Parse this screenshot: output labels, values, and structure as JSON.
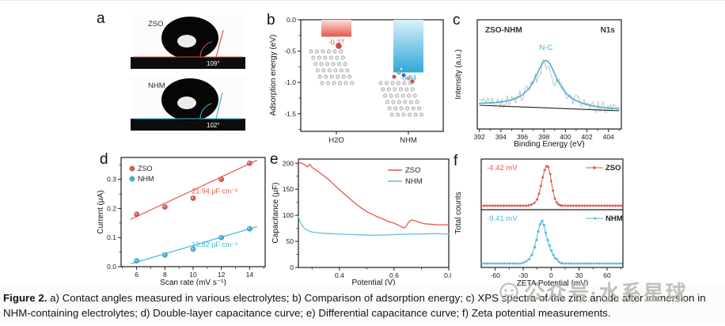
{
  "panels": {
    "a": {
      "letter": "a",
      "images": [
        {
          "sample": "ZSO",
          "angle": "109°",
          "line_color": "#e0524c"
        },
        {
          "sample": "NHM",
          "angle": "102°",
          "line_color": "#3fb4dc"
        }
      ]
    },
    "b": {
      "letter": "b"
    },
    "c": {
      "letter": "c"
    },
    "d": {
      "letter": "d"
    },
    "e": {
      "letter": "e"
    },
    "f": {
      "letter": "f"
    }
  },
  "chart_data": [
    {
      "panel": "b",
      "type": "bar",
      "categories": [
        "H2O",
        "NHM"
      ],
      "values": [
        -0.27,
        -0.84
      ],
      "bar_labels": [
        "-0.27",
        "-0.84"
      ],
      "series_colors": [
        "#e4574b",
        "#2fa8d8"
      ],
      "ylabel": "Adsorption energy (eV)",
      "ylim": [
        -1.78,
        0.0
      ],
      "yticks": [
        0.0,
        -0.5,
        -1.0,
        -1.5
      ]
    },
    {
      "panel": "c",
      "type": "line",
      "title_left": "ZSO-NHM",
      "title_right": "N1s",
      "peak_label": "N-C",
      "xlabel": "Binding Energy (eV)",
      "ylabel": "Intensity (a.u.)",
      "xlim": [
        391.8,
        405.2
      ],
      "xticks": [
        392,
        394,
        396,
        398,
        400,
        402,
        404
      ],
      "peak": {
        "center": 398.2,
        "half_width": 1.3,
        "amplitude": 60
      },
      "noise_seed": 9,
      "noise_amplitude": 16,
      "colors": {
        "fit": "#41aed3",
        "raw": "#bdbdbd",
        "baseline": "#222222"
      }
    },
    {
      "panel": "d",
      "type": "scatter",
      "xlabel": "Scan rate (mV s⁻¹)",
      "ylabel": "Current (μA)",
      "xlim": [
        4.9,
        15.1
      ],
      "ylim": [
        0,
        0.375
      ],
      "xticks": [
        6,
        8,
        10,
        12,
        14
      ],
      "yticks": [
        0.0,
        0.1,
        0.2,
        0.3
      ],
      "series": [
        {
          "name": "ZSO",
          "color": "#e4574b",
          "points": [
            [
              6,
              0.18
            ],
            [
              8,
              0.205
            ],
            [
              10,
              0.235
            ],
            [
              12,
              0.3
            ],
            [
              14,
              0.355
            ]
          ],
          "fit": [
            [
              5.6,
              0.163
            ],
            [
              14.5,
              0.365
            ]
          ],
          "annotation": "21.94 μF cm⁻²",
          "annotation_xy": [
            9.9,
            0.252
          ]
        },
        {
          "name": "NHM",
          "color": "#3fb4dc",
          "points": [
            [
              6,
              0.02
            ],
            [
              8,
              0.04
            ],
            [
              10,
              0.06
            ],
            [
              12,
              0.1
            ],
            [
              14,
              0.13
            ]
          ],
          "fit": [
            [
              5.6,
              0.01
            ],
            [
              14.5,
              0.137
            ]
          ],
          "annotation": "13.82 μF cm⁻²",
          "annotation_xy": [
            9.9,
            0.068
          ]
        }
      ],
      "legend": [
        "ZSO",
        "NHM"
      ]
    },
    {
      "panel": "e",
      "type": "line",
      "xlabel": "Potential (V)",
      "ylabel": "Capacitance (μF)",
      "xlim": [
        0.25,
        0.8
      ],
      "ylim": [
        0,
        208
      ],
      "xticks": [
        0.4,
        0.6,
        0.8
      ],
      "yticks": [
        0,
        50,
        100,
        150,
        200
      ],
      "series": [
        {
          "name": "ZSO",
          "color": "#e4574b",
          "points": [
            [
              0.25,
              202
            ],
            [
              0.27,
              198
            ],
            [
              0.283,
              193
            ],
            [
              0.292,
              198
            ],
            [
              0.3,
              192
            ],
            [
              0.32,
              185
            ],
            [
              0.34,
              177
            ],
            [
              0.36,
              169
            ],
            [
              0.38,
              159
            ],
            [
              0.4,
              149
            ],
            [
              0.42,
              140
            ],
            [
              0.44,
              131
            ],
            [
              0.46,
              122
            ],
            [
              0.48,
              114
            ],
            [
              0.5,
              107
            ],
            [
              0.52,
              102
            ],
            [
              0.54,
              97
            ],
            [
              0.56,
              93
            ],
            [
              0.58,
              88
            ],
            [
              0.6,
              85
            ],
            [
              0.62,
              80
            ],
            [
              0.63,
              77
            ],
            [
              0.64,
              76
            ],
            [
              0.655,
              88
            ],
            [
              0.665,
              91
            ],
            [
              0.675,
              90
            ],
            [
              0.69,
              87
            ],
            [
              0.71,
              84
            ],
            [
              0.73,
              83
            ],
            [
              0.76,
              82
            ],
            [
              0.8,
              82
            ]
          ]
        },
        {
          "name": "NHM",
          "color": "#5fc2dd",
          "points": [
            [
              0.25,
              98
            ],
            [
              0.255,
              90
            ],
            [
              0.262,
              82
            ],
            [
              0.27,
              76
            ],
            [
              0.28,
              72
            ],
            [
              0.3,
              68
            ],
            [
              0.33,
              66
            ],
            [
              0.36,
              65
            ],
            [
              0.4,
              64
            ],
            [
              0.45,
              63
            ],
            [
              0.5,
              62
            ],
            [
              0.55,
              62
            ],
            [
              0.6,
              63
            ],
            [
              0.65,
              64
            ],
            [
              0.7,
              64
            ],
            [
              0.75,
              65
            ],
            [
              0.8,
              64
            ]
          ]
        }
      ],
      "legend": [
        "ZSO",
        "NHM"
      ]
    },
    {
      "panel": "f",
      "type": "stacked-peaks",
      "xlabel": "ZETA Potential (mV)",
      "ylabel": "Total counts",
      "xlim": [
        -75,
        77
      ],
      "xticks": [
        -60,
        -30,
        0,
        30,
        60
      ],
      "subplots": [
        {
          "name": "ZSO",
          "color": "#e4574b",
          "marker": "circle",
          "value_label": "-4.42 mV",
          "peak_mv": -4.42,
          "points": [
            [
              -75,
              0
            ],
            [
              -72,
              0
            ],
            [
              -69,
              0
            ],
            [
              -66,
              0
            ],
            [
              -63,
              0
            ],
            [
              -60,
              0
            ],
            [
              -57,
              0
            ],
            [
              -54,
              0
            ],
            [
              -51,
              0
            ],
            [
              -48,
              0
            ],
            [
              -45,
              0
            ],
            [
              -42,
              0
            ],
            [
              -39,
              0
            ],
            [
              -36,
              0
            ],
            [
              -33,
              0
            ],
            [
              -30,
              0
            ],
            [
              -27,
              0
            ],
            [
              -24,
              0.01
            ],
            [
              -21,
              0.03
            ],
            [
              -18,
              0.07
            ],
            [
              -15,
              0.16
            ],
            [
              -13,
              0.3
            ],
            [
              -11,
              0.5
            ],
            [
              -9,
              0.72
            ],
            [
              -7,
              0.9
            ],
            [
              -5,
              1.0
            ],
            [
              -3,
              0.98
            ],
            [
              -1,
              0.8
            ],
            [
              0,
              0.62
            ],
            [
              2,
              0.38
            ],
            [
              4,
              0.18
            ],
            [
              6,
              0.08
            ],
            [
              8,
              0.03
            ],
            [
              10,
              0.01
            ],
            [
              12,
              0
            ],
            [
              15,
              0
            ],
            [
              18,
              0
            ],
            [
              21,
              0
            ],
            [
              24,
              0
            ],
            [
              27,
              0
            ],
            [
              30,
              0
            ],
            [
              33,
              0
            ],
            [
              36,
              0
            ],
            [
              39,
              0
            ],
            [
              42,
              0
            ],
            [
              45,
              0
            ],
            [
              48,
              0
            ],
            [
              51,
              0
            ],
            [
              54,
              0
            ],
            [
              57,
              0
            ],
            [
              60,
              0
            ],
            [
              63,
              0
            ],
            [
              66,
              0
            ],
            [
              69,
              0
            ],
            [
              72,
              0
            ],
            [
              75,
              0
            ]
          ]
        },
        {
          "name": "NHM",
          "color": "#4ab5e0",
          "marker": "triangle",
          "value_label": "-9.41 mV",
          "peak_mv": -9.41,
          "points": [
            [
              -75,
              0
            ],
            [
              -72,
              0
            ],
            [
              -69,
              0
            ],
            [
              -66,
              0
            ],
            [
              -63,
              0
            ],
            [
              -60,
              0
            ],
            [
              -57,
              0
            ],
            [
              -54,
              0
            ],
            [
              -51,
              0
            ],
            [
              -48,
              0
            ],
            [
              -45,
              0
            ],
            [
              -42,
              0
            ],
            [
              -39,
              0
            ],
            [
              -36,
              0
            ],
            [
              -33,
              0
            ],
            [
              -30,
              0.02
            ],
            [
              -27,
              0.05
            ],
            [
              -24,
              0.1
            ],
            [
              -21,
              0.2
            ],
            [
              -18,
              0.38
            ],
            [
              -16,
              0.55
            ],
            [
              -14,
              0.75
            ],
            [
              -12,
              0.92
            ],
            [
              -10,
              1.0
            ],
            [
              -8,
              0.9
            ],
            [
              -6,
              0.72
            ],
            [
              -4,
              0.55
            ],
            [
              -2,
              0.42
            ],
            [
              0,
              0.3
            ],
            [
              2,
              0.2
            ],
            [
              4,
              0.12
            ],
            [
              6,
              0.1
            ],
            [
              8,
              0.04
            ],
            [
              10,
              0.01
            ],
            [
              12,
              0
            ],
            [
              15,
              0
            ],
            [
              18,
              0
            ],
            [
              21,
              0
            ],
            [
              24,
              0
            ],
            [
              27,
              0
            ],
            [
              30,
              0
            ],
            [
              33,
              0
            ],
            [
              36,
              0
            ],
            [
              39,
              0
            ],
            [
              42,
              0
            ],
            [
              45,
              0
            ],
            [
              48,
              0
            ],
            [
              51,
              0
            ],
            [
              54,
              0
            ],
            [
              57,
              0
            ],
            [
              60,
              0
            ],
            [
              63,
              0
            ],
            [
              66,
              0
            ],
            [
              69,
              0
            ],
            [
              72,
              0
            ],
            [
              75,
              0
            ]
          ]
        }
      ]
    }
  ],
  "caption": {
    "prefix": "Figure 2.",
    "text": " a) Contact angles measured in various electrolytes; b) Comparison of adsorption energy; c) XPS spectra of the zinc anode after immersion in NHM-containing electrolytes; d) Double-layer capacitance curve; e) Differential capacitance curve; f) Zeta potential measurements."
  },
  "watermark": {
    "text": "公众号·水系星球",
    "icon": "smiley-face-icon"
  }
}
